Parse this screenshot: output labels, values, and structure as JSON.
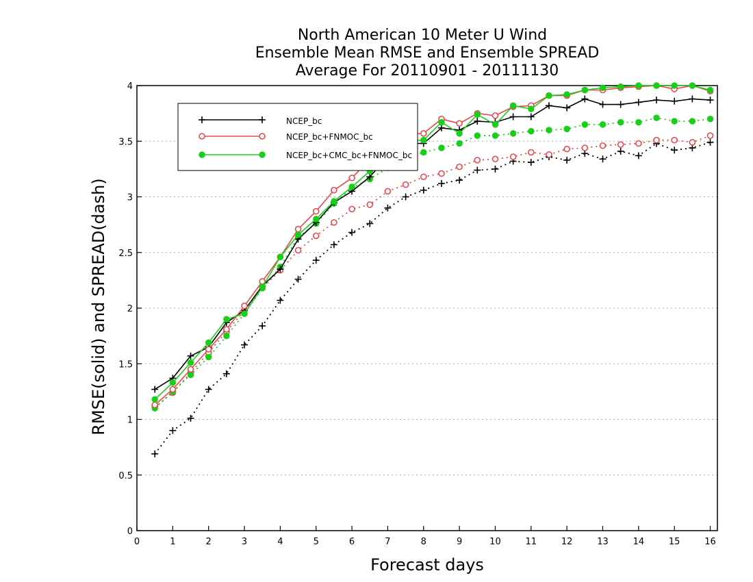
{
  "chart_data": {
    "type": "line",
    "title_lines": [
      "North American 10 Meter U Wind",
      "Ensemble Mean RMSE and Ensemble SPREAD",
      "Average For 20110901 - 20111130"
    ],
    "xlabel": "Forecast days",
    "ylabel": "RMSE(solid) and SPREAD(dash)",
    "xlim": [
      0,
      16.2
    ],
    "ylim": [
      0,
      4
    ],
    "x_ticks": [
      "0",
      "1",
      "2",
      "3",
      "4",
      "5",
      "6",
      "7",
      "8",
      "9",
      "10",
      "11",
      "12",
      "13",
      "14",
      "15",
      "16"
    ],
    "y_ticks": [
      "0",
      "0.5",
      "1",
      "1.5",
      "2",
      "2.5",
      "3",
      "3.5",
      "4"
    ],
    "grid": "horizontal dotted",
    "legend_position": "top-left",
    "x": [
      0.5,
      1,
      1.5,
      2,
      2.5,
      3,
      3.5,
      4,
      4.5,
      5,
      5.5,
      6,
      6.5,
      7,
      7.5,
      8,
      8.5,
      9,
      9.5,
      10,
      10.5,
      11,
      11.5,
      12,
      12.5,
      13,
      13.5,
      14,
      14.5,
      15,
      15.5,
      16
    ],
    "series": [
      {
        "name": "NCEP_bc",
        "color": "#000000",
        "marker": "plus",
        "rmse": [
          1.27,
          1.37,
          1.57,
          1.65,
          1.87,
          1.98,
          2.2,
          2.35,
          2.62,
          2.77,
          2.95,
          3.05,
          3.18,
          3.36,
          3.48,
          3.48,
          3.62,
          3.6,
          3.68,
          3.67,
          3.72,
          3.72,
          3.82,
          3.8,
          3.88,
          3.83,
          3.83,
          3.85,
          3.87,
          3.86,
          3.88,
          3.87
        ],
        "spread": [
          0.69,
          0.9,
          1.01,
          1.27,
          1.41,
          1.67,
          1.84,
          2.07,
          2.26,
          2.43,
          2.57,
          2.68,
          2.76,
          2.9,
          3.0,
          3.06,
          3.12,
          3.15,
          3.24,
          3.25,
          3.32,
          3.31,
          3.36,
          3.33,
          3.39,
          3.34,
          3.41,
          3.37,
          3.48,
          3.42,
          3.44,
          3.49
        ]
      },
      {
        "name": "NCEP_bc+FNMOC_bc",
        "color": "#e8464a",
        "marker": "open-circle",
        "rmse": [
          1.13,
          1.27,
          1.45,
          1.63,
          1.81,
          2.02,
          2.24,
          2.46,
          2.71,
          2.87,
          3.06,
          3.17,
          3.34,
          3.43,
          3.56,
          3.57,
          3.7,
          3.66,
          3.75,
          3.73,
          3.81,
          3.82,
          3.91,
          3.91,
          3.96,
          3.96,
          3.98,
          3.99,
          4.0,
          3.97,
          4.0,
          3.95
        ],
        "spread": [
          1.11,
          1.24,
          1.42,
          1.6,
          1.79,
          1.98,
          2.18,
          2.34,
          2.52,
          2.65,
          2.77,
          2.89,
          2.93,
          3.05,
          3.11,
          3.18,
          3.21,
          3.27,
          3.33,
          3.34,
          3.36,
          3.4,
          3.38,
          3.43,
          3.44,
          3.46,
          3.47,
          3.48,
          3.51,
          3.51,
          3.49,
          3.55
        ]
      },
      {
        "name": "NCEP_bc+CMC_bc+FNMOC_bc",
        "color": "#19cf19",
        "marker": "filled-circle",
        "rmse": [
          1.18,
          1.33,
          1.51,
          1.69,
          1.9,
          1.95,
          2.19,
          2.46,
          2.66,
          2.8,
          2.96,
          3.09,
          3.23,
          3.4,
          3.5,
          3.51,
          3.67,
          3.57,
          3.74,
          3.65,
          3.82,
          3.79,
          3.91,
          3.92,
          3.96,
          3.98,
          3.99,
          4.0,
          4.0,
          4.0,
          4.0,
          3.96
        ],
        "spread": [
          1.1,
          1.25,
          1.4,
          1.56,
          1.75,
          1.95,
          2.18,
          2.37,
          2.64,
          2.76,
          2.94,
          3.08,
          3.16,
          3.26,
          3.35,
          3.4,
          3.44,
          3.48,
          3.55,
          3.55,
          3.57,
          3.59,
          3.6,
          3.61,
          3.65,
          3.65,
          3.67,
          3.67,
          3.71,
          3.68,
          3.68,
          3.7
        ]
      }
    ]
  }
}
